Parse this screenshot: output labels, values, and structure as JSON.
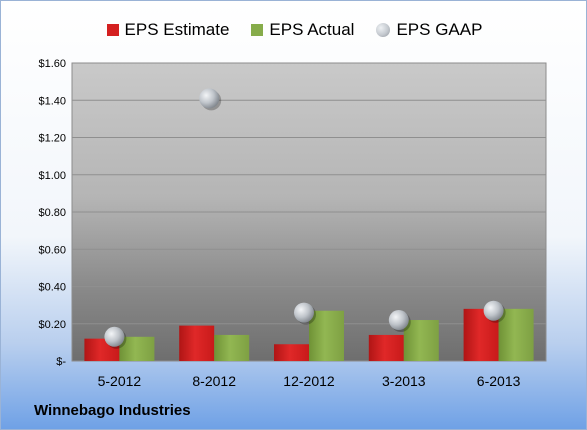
{
  "chart_data": {
    "type": "bar",
    "title": "",
    "xlabel": "",
    "ylabel": "",
    "categories": [
      "5-2012",
      "8-2012",
      "12-2012",
      "3-2013",
      "6-2013"
    ],
    "series": [
      {
        "name": "EPS Estimate",
        "kind": "bar",
        "color": "#d42020",
        "values": [
          0.12,
          0.19,
          0.09,
          0.14,
          0.28
        ]
      },
      {
        "name": "EPS Actual",
        "kind": "bar",
        "color": "#86ac4a",
        "values": [
          0.13,
          0.14,
          0.27,
          0.22,
          0.28
        ]
      },
      {
        "name": "EPS GAAP",
        "kind": "point",
        "color": "#b9bec4",
        "values": [
          0.13,
          1.41,
          0.26,
          0.22,
          0.27
        ]
      }
    ],
    "ylim": [
      0,
      1.6
    ],
    "yticks": [
      0,
      0.2,
      0.4,
      0.6,
      0.8,
      1.0,
      1.2,
      1.4,
      1.6
    ],
    "ytick_labels": [
      "$-",
      "$0.20",
      "$0.40",
      "$0.60",
      "$0.80",
      "$1.00",
      "$1.20",
      "$1.40",
      "$1.60"
    ],
    "grid": true,
    "legend_position": "top"
  },
  "footer": {
    "company": "Winnebago Industries"
  }
}
